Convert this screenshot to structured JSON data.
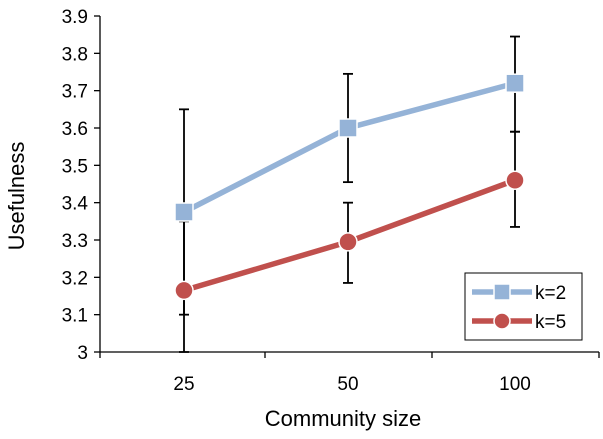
{
  "chart_data": {
    "type": "line",
    "title": "",
    "xlabel": "Community size",
    "ylabel": "Usefulness",
    "categories": [
      "25",
      "50",
      "100"
    ],
    "ylim": [
      3.0,
      3.9
    ],
    "yticks": [
      "3",
      "3.1",
      "3.2",
      "3.3",
      "3.4",
      "3.5",
      "3.6",
      "3.7",
      "3.8",
      "3.9"
    ],
    "grid": false,
    "legend_position": "bottom-right",
    "series": [
      {
        "name": "k=2",
        "color": "#95b3d7",
        "marker": "square",
        "values": [
          3.375,
          3.6,
          3.72
        ],
        "error_low": [
          3.1,
          3.455,
          3.59
        ],
        "error_high": [
          3.65,
          3.745,
          3.845
        ]
      },
      {
        "name": "k=5",
        "color": "#c0504d",
        "marker": "circle",
        "values": [
          3.165,
          3.295,
          3.46
        ],
        "error_low": [
          3.0,
          3.185,
          3.335
        ],
        "error_high": [
          3.35,
          3.4,
          3.59
        ]
      }
    ]
  }
}
